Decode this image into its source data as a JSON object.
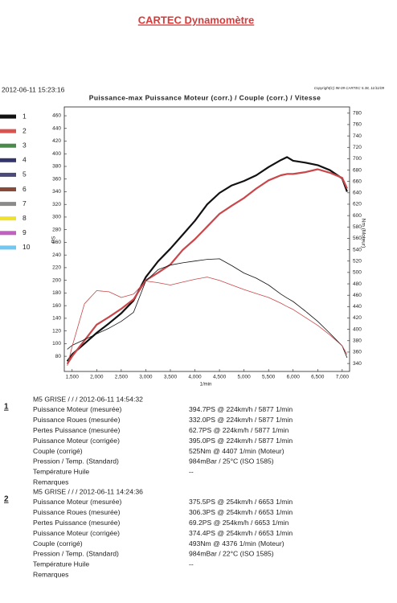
{
  "header": {
    "title": "CARTEC Dynamomètre",
    "date": "2012-06-11 15:23:16",
    "copyright": "Copyright(C) 98-09 CARTEC 5.38, 11/11/09"
  },
  "legend": [
    {
      "label": "1",
      "color": "#111111"
    },
    {
      "label": "2",
      "color": "#d9534f"
    },
    {
      "label": "3",
      "color": "#4a8a4a"
    },
    {
      "label": "4",
      "color": "#35356e"
    },
    {
      "label": "5",
      "color": "#4a4a7a"
    },
    {
      "label": "6",
      "color": "#8a4a3a"
    },
    {
      "label": "7",
      "color": "#8a8a8a"
    },
    {
      "label": "8",
      "color": "#f0e030"
    },
    {
      "label": "9",
      "color": "#c060c0"
    },
    {
      "label": "10",
      "color": "#70c8f0"
    }
  ],
  "chart_data": {
    "type": "line",
    "title": "Puissance-max Puissance Moteur (corr.) / Couple (corr.) / Vitesse",
    "x_label": "1/min",
    "y_label": "PS",
    "y2_label": "Nm (Moteur)",
    "x": [
      1400,
      1500,
      1750,
      2000,
      2250,
      2500,
      2750,
      3000,
      3250,
      3500,
      3750,
      4000,
      4250,
      4500,
      4750,
      5000,
      5250,
      5500,
      5750,
      5877,
      6000,
      6250,
      6500,
      6750,
      7000,
      7100
    ],
    "xlim": [
      1340,
      7150
    ],
    "xticks": [
      {
        "value": 1500,
        "label": "1,500"
      },
      {
        "value": 2000,
        "label": "2,000"
      },
      {
        "value": 2500,
        "label": "2,500"
      },
      {
        "value": 3000,
        "label": "3,000"
      },
      {
        "value": 3500,
        "label": "3,500"
      },
      {
        "value": 4000,
        "label": "4,000"
      },
      {
        "value": 4500,
        "label": "4,500"
      },
      {
        "value": 5000,
        "label": "5,000"
      },
      {
        "value": 5500,
        "label": "5,500"
      },
      {
        "value": 6000,
        "label": "6,000"
      },
      {
        "value": 6500,
        "label": "6,500"
      },
      {
        "value": 7000,
        "label": "7,000"
      }
    ],
    "ylim": [
      56,
      474
    ],
    "yticks": [
      80,
      100,
      120,
      140,
      160,
      180,
      200,
      220,
      240,
      260,
      280,
      300,
      320,
      340,
      360,
      380,
      400,
      420,
      440,
      460
    ],
    "y2lim": [
      326,
      791
    ],
    "y2ticks": [
      340,
      360,
      380,
      400,
      420,
      440,
      460,
      480,
      500,
      520,
      540,
      560,
      580,
      600,
      620,
      640,
      660,
      680,
      700,
      720,
      740,
      760,
      780
    ],
    "grid": false,
    "series": [
      {
        "name": "1",
        "color": "#111111",
        "width": 2.2,
        "values": [
          72,
          83,
          100,
          117,
          132,
          148,
          168,
          205,
          230,
          250,
          272,
          294,
          320,
          338,
          350,
          357,
          366,
          379,
          390,
          394.7,
          389,
          386,
          382,
          374,
          361,
          340
        ]
      },
      {
        "name": "2",
        "color": "#c9474a",
        "width": 2.2,
        "values": [
          68,
          80,
          105,
          130,
          142,
          155,
          170,
          200,
          212,
          225,
          248,
          265,
          285,
          305,
          318,
          330,
          345,
          358,
          366,
          368,
          368,
          371,
          375.5,
          370,
          362,
          345
        ]
      },
      {
        "name": "1",
        "color": "#111111",
        "width": 0.8,
        "axis": "y2",
        "values": [
          365,
          372,
          382,
          392,
          402,
          414,
          430,
          485,
          505,
          513,
          517,
          520,
          523,
          524,
          512,
          499,
          490,
          478,
          462,
          455,
          449,
          432,
          414,
          393,
          371,
          350
        ]
      },
      {
        "name": "2",
        "color": "#c9474a",
        "width": 0.8,
        "axis": "y2",
        "values": [
          336,
          370,
          445,
          468,
          466,
          456,
          462,
          485,
          482,
          478,
          483,
          488,
          492,
          486,
          478,
          470,
          463,
          456,
          446,
          440,
          435,
          421,
          407,
          390,
          371,
          356
        ]
      }
    ]
  },
  "results": [
    {
      "number": "1",
      "title": "M5 GRISE / / / 2012-06-11 14:54:32",
      "rows": [
        [
          "Puissance Moteur (mesurée)",
          "394.7PS @ 224km/h / 5877 1/min"
        ],
        [
          "Puissance Roues (mesurée)",
          "332.0PS @ 224km/h / 5877 1/min"
        ],
        [
          "Pertes Puissance (mesurée)",
          "62.7PS @ 224km/h / 5877 1/min"
        ],
        [
          "Puissance Moteur (corrigée)",
          "395.0PS @ 224km/h / 5877 1/min"
        ],
        [
          "Couple (corrigé)",
          "525Nm @ 4407 1/min (Moteur)"
        ],
        [
          "Pression / Temp. (Standard)",
          "984mBar / 25°C   (ISO 1585)"
        ],
        [
          "Température Huile",
          "--"
        ],
        [
          "Remarques"
        ]
      ]
    },
    {
      "number": "2",
      "title": "M5 GRISE / / / 2012-06-11 14:24:36",
      "rows": [
        [
          "Puissance Moteur (mesurée)",
          "375.5PS @ 254km/h / 6653 1/min"
        ],
        [
          "Puissance Roues (mesurée)",
          "306.3PS @ 254km/h / 6653 1/min"
        ],
        [
          "Pertes Puissance (mesurée)",
          "69.2PS @ 254km/h / 6653 1/min"
        ],
        [
          "Puissance Moteur (corrigée)",
          "374.4PS @ 254km/h / 6653 1/min"
        ],
        [
          "Couple (corrigé)",
          "493Nm @ 4376 1/min (Moteur)"
        ],
        [
          "Pression / Temp. (Standard)",
          "984mBar / 22°C   (ISO 1585)"
        ],
        [
          "Température Huile",
          "--"
        ],
        [
          "Remarques"
        ]
      ]
    }
  ]
}
